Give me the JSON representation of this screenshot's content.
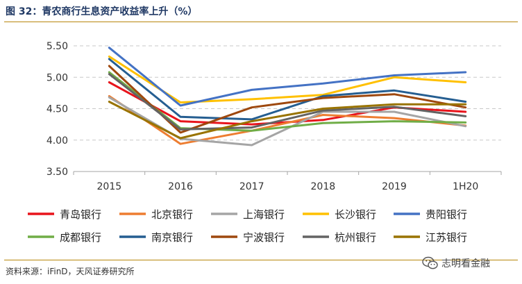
{
  "header": {
    "title": "图 32：青农商行生息资产收益率上升（%）"
  },
  "footer": {
    "source": "资料来源：iFinD，天风证券研究所",
    "watermark": "志明看金融"
  },
  "chart_data": {
    "type": "line",
    "title": "",
    "xlabel": "",
    "ylabel": "",
    "categories": [
      "2015",
      "2016",
      "2017",
      "2018",
      "2019",
      "1H20"
    ],
    "ylim": [
      3.5,
      5.5
    ],
    "yticks": [
      "3.50",
      "4.00",
      "4.50",
      "5.00",
      "5.50"
    ],
    "grid": "horizontal-dashed",
    "legend_position": "bottom",
    "series": [
      {
        "name": "青岛银行",
        "color": "#e8141c",
        "values": [
          4.92,
          4.3,
          4.25,
          4.32,
          4.52,
          4.45
        ]
      },
      {
        "name": "北京银行",
        "color": "#ed7d31",
        "values": [
          4.7,
          3.94,
          4.15,
          4.4,
          4.35,
          4.23
        ]
      },
      {
        "name": "上海银行",
        "color": "#a5a5a5",
        "values": [
          4.68,
          4.02,
          3.92,
          4.45,
          4.45,
          4.22
        ]
      },
      {
        "name": "长沙银行",
        "color": "#ffc000",
        "values": [
          5.33,
          4.6,
          4.65,
          4.72,
          5.0,
          4.92
        ]
      },
      {
        "name": "贵阳银行",
        "color": "#4472c4",
        "values": [
          5.47,
          4.55,
          4.8,
          4.9,
          5.03,
          5.08
        ]
      },
      {
        "name": "成都银行",
        "color": "#70ad47",
        "values": [
          5.08,
          4.19,
          4.15,
          4.27,
          4.3,
          4.28
        ]
      },
      {
        "name": "南京银行",
        "color": "#255e91",
        "values": [
          5.29,
          4.37,
          4.33,
          4.7,
          4.79,
          4.61
        ]
      },
      {
        "name": "宁波银行",
        "color": "#9e480e",
        "values": [
          5.18,
          4.12,
          4.52,
          4.67,
          4.73,
          4.52
        ]
      },
      {
        "name": "杭州银行",
        "color": "#636363",
        "values": [
          5.05,
          4.17,
          4.2,
          4.47,
          4.53,
          4.38
        ]
      },
      {
        "name": "江苏银行",
        "color": "#997300",
        "values": [
          4.61,
          4.03,
          4.3,
          4.5,
          4.57,
          4.57
        ]
      }
    ]
  }
}
